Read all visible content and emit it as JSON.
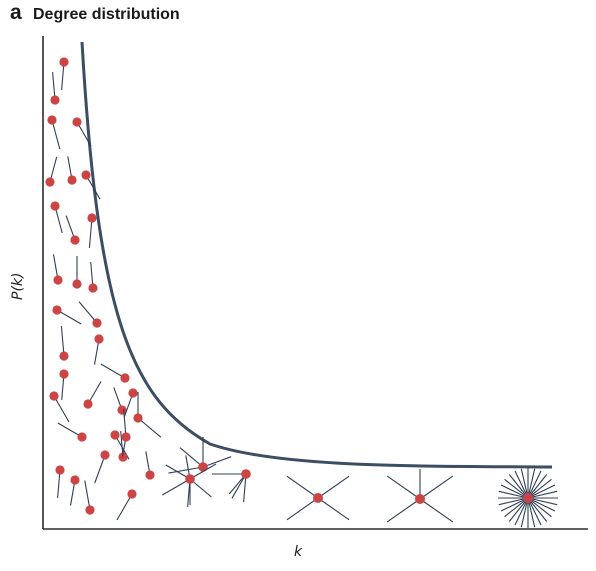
{
  "figure": {
    "panel_letter": "a",
    "title": "Degree distribution",
    "x_axis_label": "k",
    "y_axis_label": "P(k)",
    "node_color": "#cc4444",
    "edge_color": "#2f3f55",
    "curve_color": "#3d4d63"
  },
  "nodes_by_degree": {
    "degree_1_nodes": 38,
    "degree_2_nodes": 14,
    "degree_4_nodes": 1,
    "degree_6_nodes": 1,
    "degree_3_nodes": 1,
    "hub_4_nodes": 2,
    "hub_large_nodes": 1
  }
}
